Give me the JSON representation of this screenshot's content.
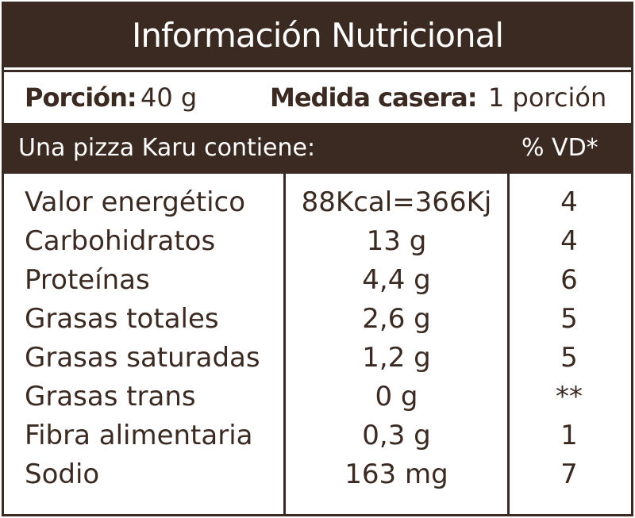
{
  "header": {
    "title": "Información Nutricional"
  },
  "portion": {
    "label": "Porción:",
    "value": "40 g"
  },
  "household": {
    "label": "Medida casera:",
    "value": "1 porción"
  },
  "table": {
    "header": [
      "Una pizza Karu contiene:",
      "% VD*"
    ],
    "rows": [
      [
        "Valor energético",
        "88Kcal=366Kj",
        "4"
      ],
      [
        "Carbohidratos",
        "13 g",
        "4"
      ],
      [
        "Proteínas",
        "4,4 g",
        "6"
      ],
      [
        "Grasas totales",
        "2,6 g",
        "5"
      ],
      [
        "Grasas saturadas",
        "1,2 g",
        "5"
      ],
      [
        "Grasas trans",
        "0 g",
        "**"
      ],
      [
        "Fibra alimentaria",
        "0,3 g",
        "1"
      ],
      [
        "Sodio",
        "163 mg",
        "7"
      ]
    ]
  }
}
